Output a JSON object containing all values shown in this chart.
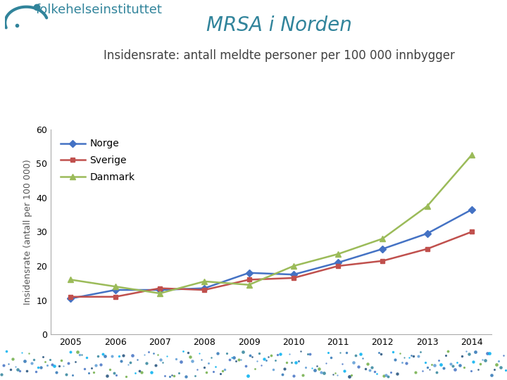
{
  "title": "MRSA i Norden",
  "subtitle": "Insidensrate: antall meldte personer per 100 000 innbygger",
  "ylabel": "Insidensrate (antall per 100 000)",
  "years": [
    2005,
    2006,
    2007,
    2008,
    2009,
    2010,
    2011,
    2012,
    2013,
    2014
  ],
  "norge": [
    10.5,
    13.0,
    13.0,
    13.5,
    18.0,
    17.5,
    21.0,
    25.0,
    29.5,
    36.5
  ],
  "sverige": [
    11.0,
    11.0,
    13.5,
    13.0,
    16.0,
    16.5,
    20.0,
    21.5,
    25.0,
    30.0
  ],
  "danmark": [
    16.0,
    14.0,
    12.0,
    15.5,
    14.5,
    20.0,
    23.5,
    28.0,
    37.5,
    52.5
  ],
  "norge_color": "#4472C4",
  "sverige_color": "#C0504D",
  "danmark_color": "#9BBB59",
  "title_color": "#31849B",
  "subtitle_color": "#404040",
  "background_color": "#FFFFFF",
  "logo_color": "#2E74B5",
  "ylim": [
    0,
    60
  ],
  "yticks": [
    0,
    10,
    20,
    30,
    40,
    50,
    60
  ],
  "title_fontsize": 20,
  "subtitle_fontsize": 12,
  "ylabel_fontsize": 9,
  "legend_labels": [
    "Norge",
    "Sverige",
    "Danmark"
  ],
  "dot_colors": [
    "#4472C4",
    "#31849B",
    "#2E74B5",
    "#1F4E79",
    "#00B0F0"
  ],
  "logo_text": "folkehelseinstituttet",
  "logo_fontsize": 13
}
